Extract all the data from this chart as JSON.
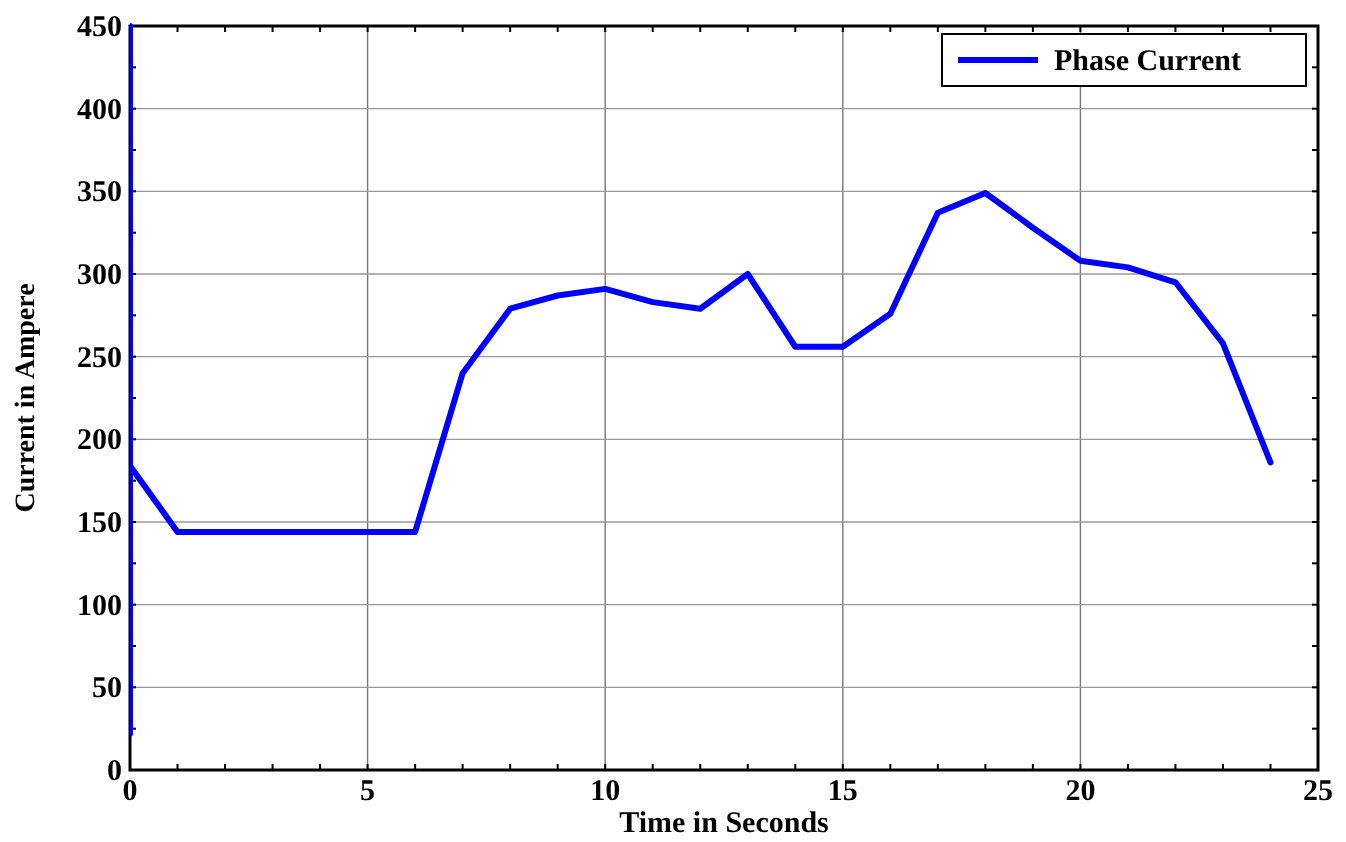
{
  "chart_data": {
    "type": "line",
    "xlabel": "Time in Seconds",
    "ylabel": "Current in Ampere",
    "xlim": [
      0,
      25
    ],
    "xticks": [
      0,
      5,
      10,
      15,
      20,
      25
    ],
    "ylim": [
      0,
      450
    ],
    "yticks": [
      0,
      50,
      100,
      150,
      200,
      250,
      300,
      350,
      400,
      450
    ],
    "grid": true,
    "legend": "top right",
    "line_style": "solid",
    "marker": "none",
    "series": [
      {
        "name": "Phase Current",
        "color": "#0000ff",
        "x": [
          0,
          0,
          0,
          1,
          6,
          7,
          8,
          9,
          10,
          11,
          12,
          13,
          14,
          15,
          16,
          17,
          18,
          19,
          20,
          21,
          22,
          23,
          24
        ],
        "values": [
          22,
          450,
          184,
          144,
          144,
          240,
          279,
          287,
          291,
          283,
          279,
          300,
          256,
          256,
          276,
          337,
          349,
          328,
          308,
          304,
          295,
          258,
          186
        ]
      }
    ]
  }
}
